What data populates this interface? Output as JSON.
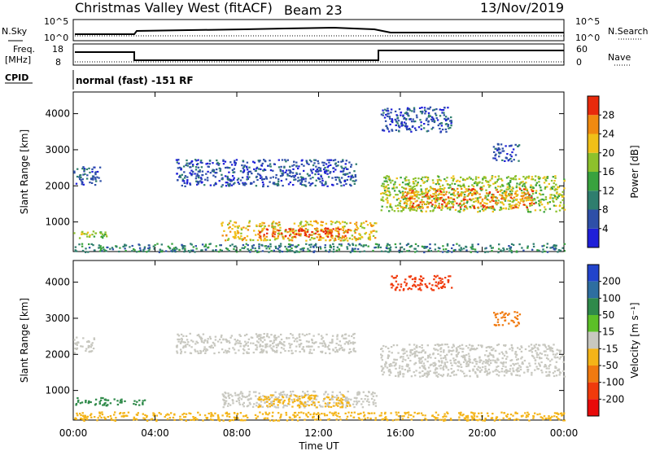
{
  "header": {
    "title": "Christmas Valley West (fitACF)",
    "beam": "Beam 23",
    "date": "13/Nov/2019"
  },
  "top_panels": {
    "nsky_label": "N.Sky",
    "nsearch_label": "N.Search",
    "noise_left_ticks": [
      "10^5",
      "10^0"
    ],
    "noise_right_ticks": [
      "10^5",
      "10^0"
    ],
    "freq_label_1": "Freq.",
    "freq_label_2": "[MHz]",
    "freq_ticks": [
      "18",
      "8"
    ],
    "nave_label": "Nave",
    "nave_ticks": [
      "60",
      "0"
    ],
    "cpid_label": "CPID",
    "cpid_text": "normal (fast) -151 RF"
  },
  "chart_data": [
    {
      "type": "heatmap",
      "name": "power",
      "ylabel": "Slant Range [km]",
      "ylim": [
        180,
        4600
      ],
      "yticks": [
        "1000",
        "2000",
        "3000",
        "4000"
      ],
      "xlim": [
        0,
        24
      ],
      "colorbar": {
        "label": "Power [dB]",
        "ticks": [
          "4",
          "8",
          "12",
          "16",
          "20",
          "24",
          "28"
        ],
        "colors": [
          "#1f1fd8",
          "#2e4fa8",
          "#2f7e6e",
          "#39a23e",
          "#8dc12c",
          "#f0c018",
          "#f08a10",
          "#e82a0c"
        ]
      },
      "regions": [
        {
          "x": [
            0.0,
            1.6
          ],
          "y": [
            550,
            780
          ],
          "level": 4
        },
        {
          "x": [
            0.0,
            1.3
          ],
          "y": [
            2050,
            2550
          ],
          "level": 1
        },
        {
          "x": [
            5.0,
            13.8
          ],
          "y": [
            2000,
            2750
          ],
          "level": 1
        },
        {
          "x": [
            7.2,
            14.8
          ],
          "y": [
            500,
            1050
          ],
          "level": 5
        },
        {
          "x": [
            9.0,
            13.5
          ],
          "y": [
            600,
            850
          ],
          "level": 7
        },
        {
          "x": [
            15.0,
            24.0
          ],
          "y": [
            1300,
            2300
          ],
          "level": 4
        },
        {
          "x": [
            16.0,
            22.5
          ],
          "y": [
            1400,
            1950
          ],
          "level": 6
        },
        {
          "x": [
            15.0,
            18.5
          ],
          "y": [
            3500,
            4200
          ],
          "level": 1
        },
        {
          "x": [
            20.5,
            21.8
          ],
          "y": [
            2700,
            3200
          ],
          "level": 1
        },
        {
          "x": [
            0.0,
            24.0
          ],
          "y": [
            180,
            420
          ],
          "level": 2
        }
      ]
    },
    {
      "type": "heatmap",
      "name": "velocity",
      "ylabel": "Slant Range [km]",
      "ylim": [
        180,
        4600
      ],
      "yticks": [
        "1000",
        "2000",
        "3000",
        "4000"
      ],
      "xlim": [
        0,
        24
      ],
      "xlabel": "Time UT",
      "xticks": [
        "00:00",
        "04:00",
        "08:00",
        "12:00",
        "16:00",
        "20:00",
        "00:00"
      ],
      "colorbar": {
        "label": "Velocity [m s⁻¹]",
        "ticks": [
          "200",
          "100",
          "50",
          "15",
          "-15",
          "-50",
          "-100",
          "-200"
        ],
        "colors": [
          "#2244cc",
          "#2e6ea0",
          "#2f8a4a",
          "#5cc028",
          "#c8c8c0",
          "#f4b418",
          "#f07a10",
          "#f03a0c",
          "#e80a0a"
        ]
      },
      "regions": [
        {
          "x": [
            0.0,
            1.5
          ],
          "y": [
            620,
            820
          ],
          "value": 60
        },
        {
          "x": [
            1.5,
            3.5
          ],
          "y": [
            600,
            780
          ],
          "value": 60
        },
        {
          "x": [
            7.2,
            14.8
          ],
          "y": [
            550,
            1000
          ],
          "value": 0
        },
        {
          "x": [
            9.0,
            13.5
          ],
          "y": [
            550,
            900
          ],
          "value": -40
        },
        {
          "x": [
            15.0,
            24.0
          ],
          "y": [
            1400,
            2300
          ],
          "value": 0
        },
        {
          "x": [
            0.0,
            1.0
          ],
          "y": [
            2050,
            2500
          ],
          "value": 0
        },
        {
          "x": [
            5.0,
            13.8
          ],
          "y": [
            2050,
            2600
          ],
          "value": 0
        },
        {
          "x": [
            15.5,
            18.5
          ],
          "y": [
            3800,
            4200
          ],
          "value": -180
        },
        {
          "x": [
            20.5,
            21.8
          ],
          "y": [
            2800,
            3200
          ],
          "value": -60
        },
        {
          "x": [
            0.0,
            24.0
          ],
          "y": [
            180,
            420
          ],
          "value": -40
        }
      ]
    }
  ]
}
